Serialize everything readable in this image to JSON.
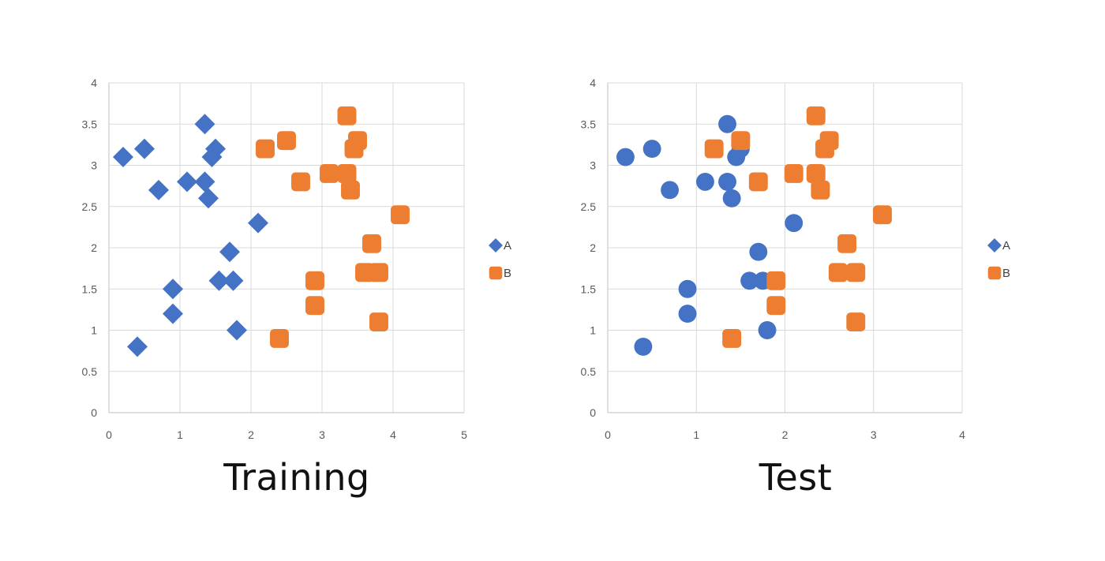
{
  "colors": {
    "A": "#4472C4",
    "B": "#ED7D31",
    "grid": "#D9D9D9",
    "axis": "#BFBFBF"
  },
  "chart_data": [
    {
      "type": "scatter",
      "caption": "Training",
      "xlim": [
        0,
        5
      ],
      "ylim": [
        0,
        4
      ],
      "x_ticks": [
        "0",
        "1",
        "2",
        "3",
        "4",
        "5"
      ],
      "y_ticks": [
        "0",
        "0.5",
        "1",
        "1.5",
        "2",
        "2.5",
        "3",
        "3.5",
        "4"
      ],
      "grid": true,
      "legend": "right",
      "series": [
        {
          "name": "A",
          "marker": "diamond",
          "points": [
            [
              0.2,
              3.1
            ],
            [
              0.5,
              3.2
            ],
            [
              0.7,
              2.7
            ],
            [
              1.1,
              2.8
            ],
            [
              1.35,
              3.5
            ],
            [
              1.35,
              2.8
            ],
            [
              1.4,
              2.6
            ],
            [
              1.45,
              3.1
            ],
            [
              1.5,
              3.2
            ],
            [
              2.1,
              2.3
            ],
            [
              1.7,
              1.95
            ],
            [
              1.55,
              1.6
            ],
            [
              1.75,
              1.6
            ],
            [
              0.9,
              1.5
            ],
            [
              0.9,
              1.2
            ],
            [
              1.8,
              1.0
            ],
            [
              0.4,
              0.8
            ]
          ]
        },
        {
          "name": "B",
          "marker": "rounded-square",
          "points": [
            [
              2.2,
              3.2
            ],
            [
              2.5,
              3.3
            ],
            [
              2.7,
              2.8
            ],
            [
              3.1,
              2.9
            ],
            [
              3.35,
              3.6
            ],
            [
              3.35,
              2.9
            ],
            [
              3.4,
              2.7
            ],
            [
              3.45,
              3.2
            ],
            [
              3.5,
              3.3
            ],
            [
              4.1,
              2.4
            ],
            [
              3.7,
              2.05
            ],
            [
              3.6,
              1.7
            ],
            [
              3.8,
              1.7
            ],
            [
              2.9,
              1.6
            ],
            [
              2.9,
              1.3
            ],
            [
              3.8,
              1.1
            ],
            [
              2.4,
              0.9
            ]
          ]
        }
      ]
    },
    {
      "type": "scatter",
      "caption": "Test",
      "xlim": [
        0,
        4
      ],
      "ylim": [
        0,
        4
      ],
      "x_ticks": [
        "0",
        "1",
        "2",
        "3",
        "4"
      ],
      "y_ticks": [
        "0",
        "0.5",
        "1",
        "1.5",
        "2",
        "2.5",
        "3",
        "3.5",
        "4"
      ],
      "grid": true,
      "legend": "right",
      "legend_markers": {
        "A": "diamond",
        "B": "rounded-square"
      },
      "series": [
        {
          "name": "A",
          "marker": "circle",
          "points": [
            [
              0.2,
              3.1
            ],
            [
              0.5,
              3.2
            ],
            [
              0.7,
              2.7
            ],
            [
              1.1,
              2.8
            ],
            [
              1.35,
              3.5
            ],
            [
              1.35,
              2.8
            ],
            [
              1.4,
              2.6
            ],
            [
              1.45,
              3.1
            ],
            [
              1.5,
              3.2
            ],
            [
              2.1,
              2.3
            ],
            [
              1.7,
              1.95
            ],
            [
              1.6,
              1.6
            ],
            [
              1.75,
              1.6
            ],
            [
              0.9,
              1.5
            ],
            [
              0.9,
              1.2
            ],
            [
              1.8,
              1.0
            ],
            [
              0.4,
              0.8
            ]
          ]
        },
        {
          "name": "B",
          "marker": "rounded-square",
          "points": [
            [
              1.2,
              3.2
            ],
            [
              1.5,
              3.3
            ],
            [
              1.7,
              2.8
            ],
            [
              2.1,
              2.9
            ],
            [
              2.35,
              3.6
            ],
            [
              2.35,
              2.9
            ],
            [
              2.4,
              2.7
            ],
            [
              2.45,
              3.2
            ],
            [
              2.5,
              3.3
            ],
            [
              3.1,
              2.4
            ],
            [
              2.7,
              2.05
            ],
            [
              2.6,
              1.7
            ],
            [
              2.8,
              1.7
            ],
            [
              1.9,
              1.6
            ],
            [
              1.9,
              1.3
            ],
            [
              2.8,
              1.1
            ],
            [
              1.4,
              0.9
            ]
          ]
        }
      ]
    }
  ]
}
